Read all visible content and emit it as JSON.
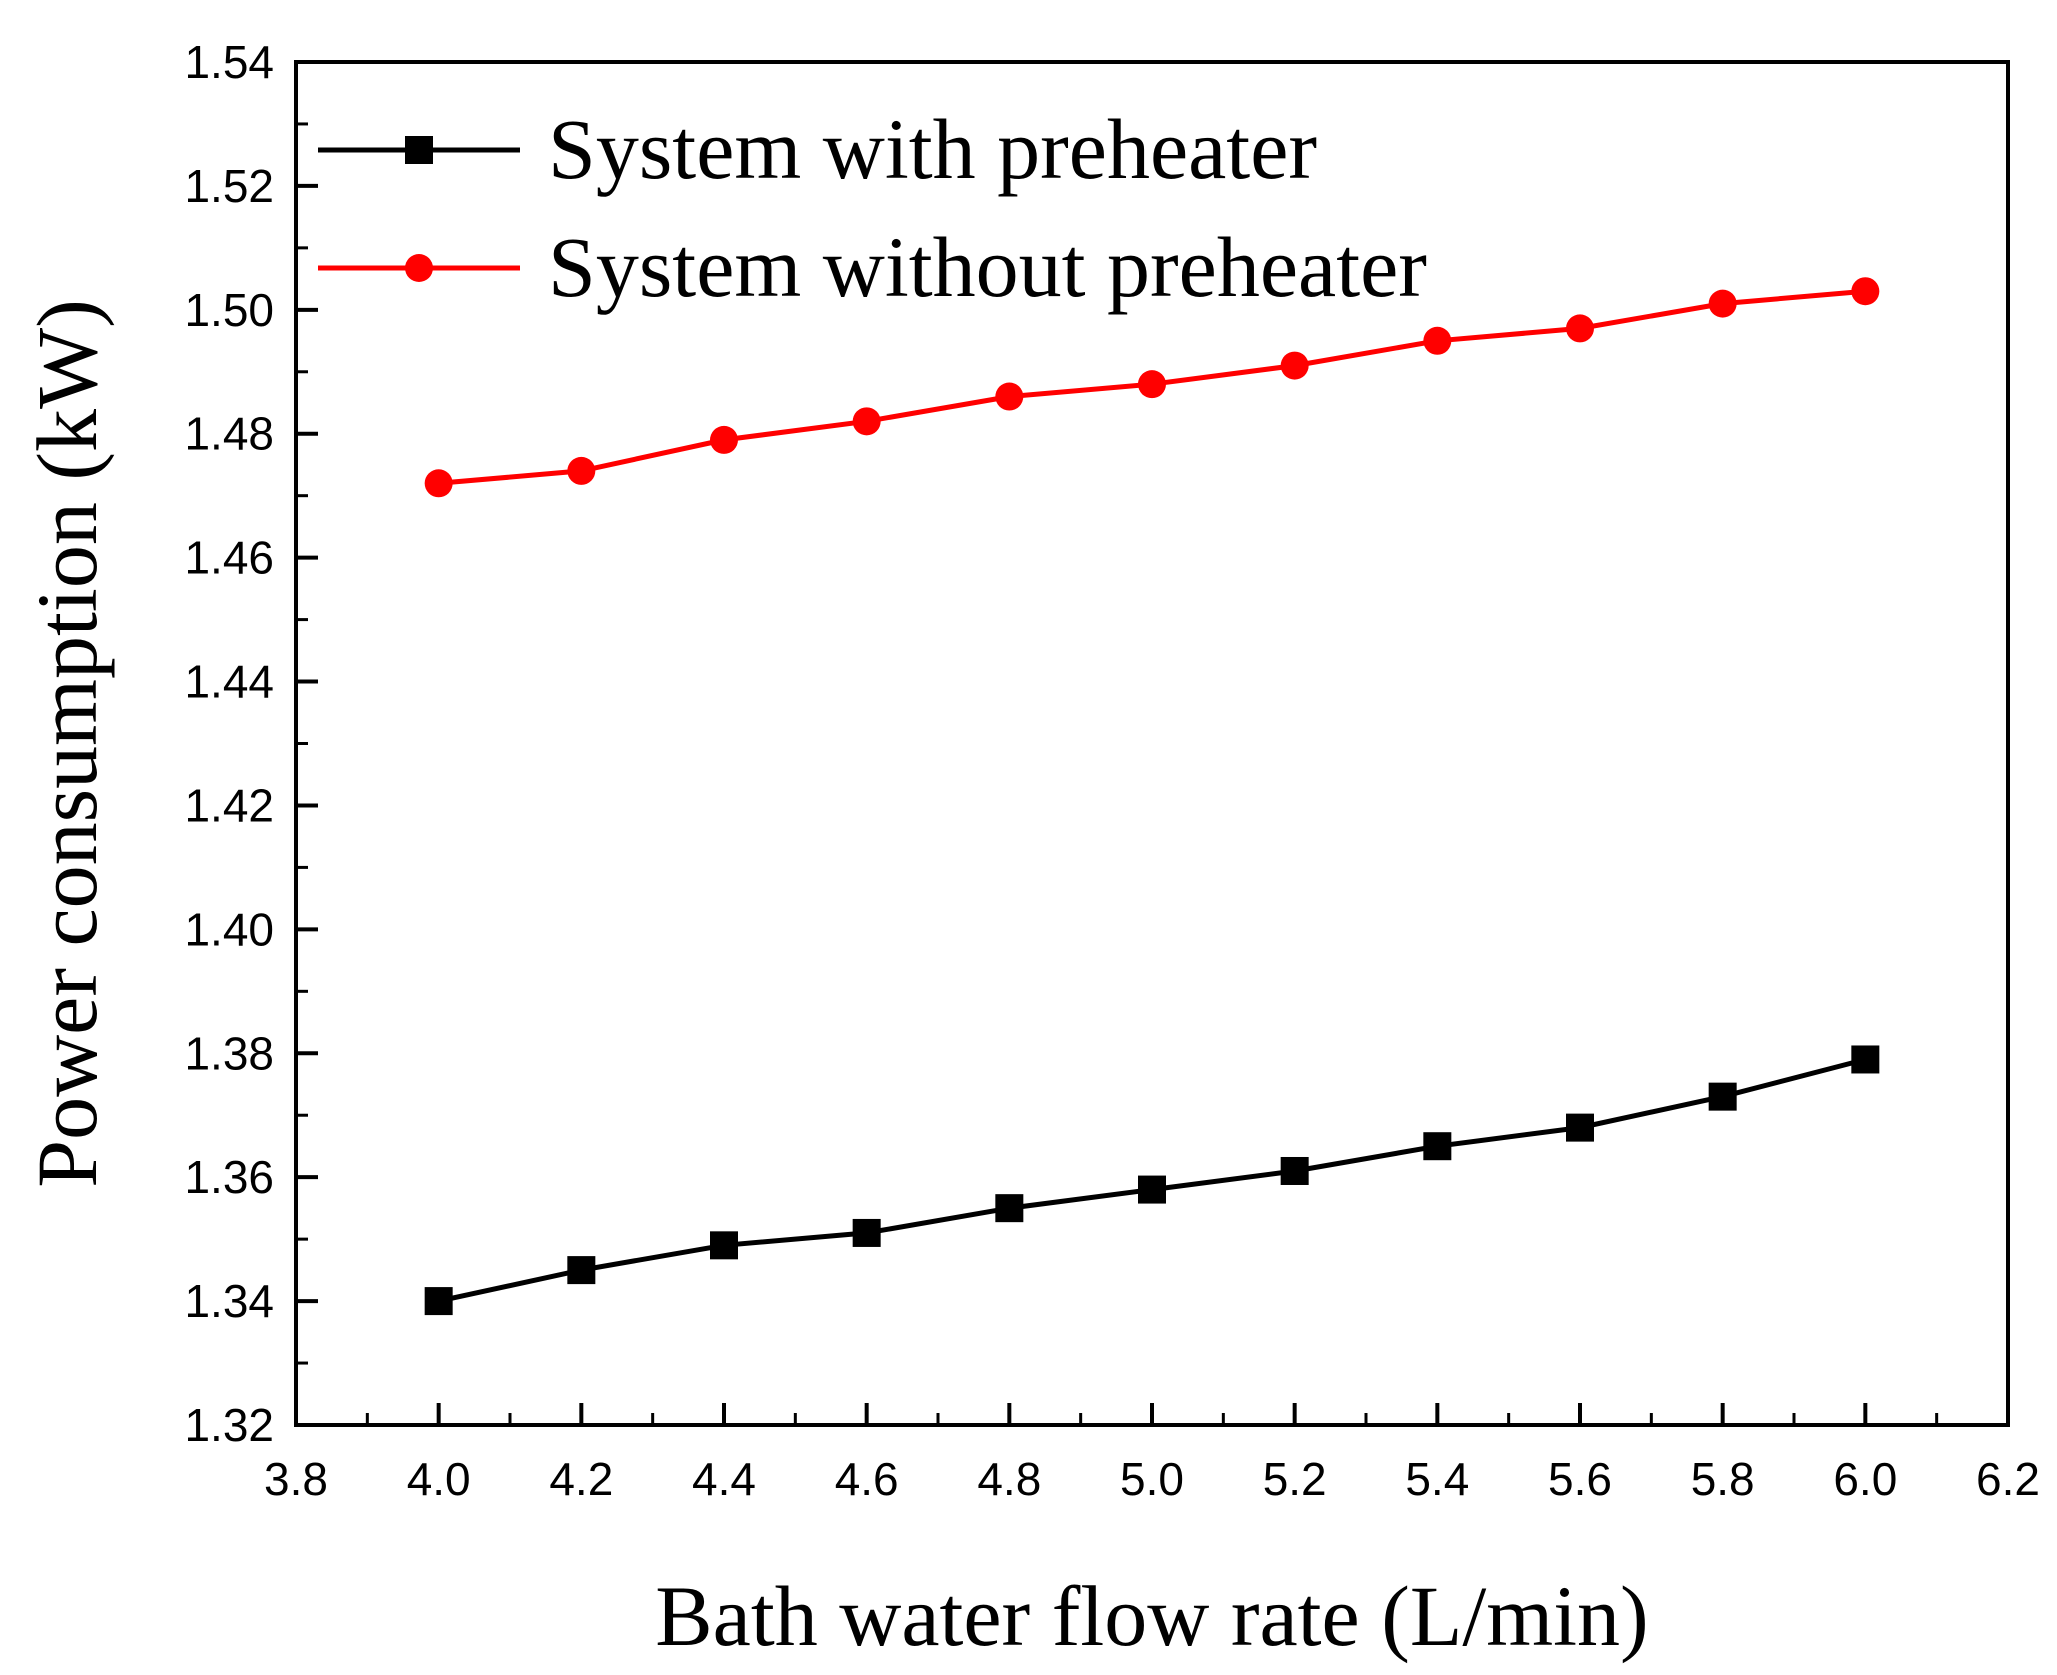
{
  "chart_data": {
    "type": "line",
    "title": "",
    "xlabel": "Bath water flow rate (L/min)",
    "ylabel": "Power consumption (kW)",
    "xlim": [
      3.8,
      6.2
    ],
    "ylim": [
      1.32,
      1.54
    ],
    "x_ticks": [
      "3.8",
      "4.0",
      "4.2",
      "4.4",
      "4.6",
      "4.8",
      "5.0",
      "5.2",
      "5.4",
      "5.6",
      "5.8",
      "6.0",
      "6.2"
    ],
    "y_ticks": [
      "1.32",
      "1.34",
      "1.36",
      "1.38",
      "1.40",
      "1.42",
      "1.44",
      "1.46",
      "1.48",
      "1.50",
      "1.52",
      "1.54"
    ],
    "grid": false,
    "legend_position": "top-left",
    "x": [
      4.0,
      4.2,
      4.4,
      4.6,
      4.8,
      5.0,
      5.2,
      5.4,
      5.6,
      5.8,
      6.0
    ],
    "series": [
      {
        "name": "System with preheater",
        "color": "#000000",
        "marker": "square",
        "values": [
          1.34,
          1.345,
          1.349,
          1.351,
          1.355,
          1.358,
          1.361,
          1.365,
          1.368,
          1.373,
          1.379
        ]
      },
      {
        "name": "System without preheater",
        "color": "#ff0000",
        "marker": "circle",
        "values": [
          1.472,
          1.474,
          1.479,
          1.482,
          1.486,
          1.488,
          1.491,
          1.495,
          1.497,
          1.501,
          1.503
        ]
      }
    ]
  }
}
